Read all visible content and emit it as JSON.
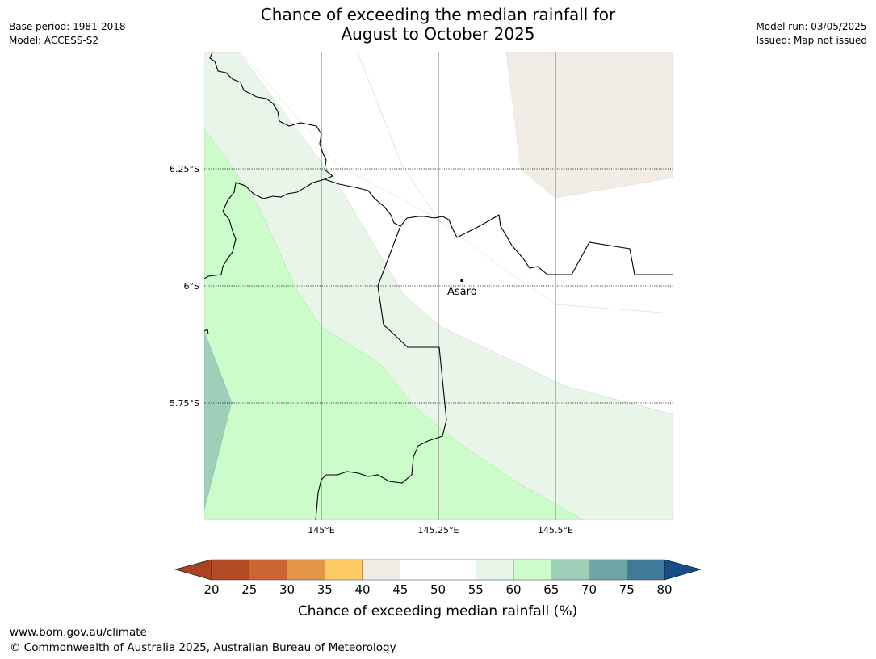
{
  "header": {
    "base_period": "Base period: 1981-2018",
    "model": "Model: ACCESS-S2",
    "model_run": "Model run: 03/05/2025",
    "issued": "Issued: Map not issued",
    "title_line1": "Chance of exceeding the median rainfall for",
    "title_line2": "August to October 2025"
  },
  "map": {
    "latitudes": [
      {
        "value": -5.75,
        "label": "5.75°S"
      },
      {
        "value": -6.0,
        "label": "6°S"
      },
      {
        "value": -6.25,
        "label": "6.25°S"
      }
    ],
    "longitudes": [
      {
        "value": 145.0,
        "label": "145°E"
      },
      {
        "value": 145.25,
        "label": "145.25°E"
      },
      {
        "value": 145.5,
        "label": "145.5°E"
      }
    ],
    "place": {
      "name": "Asaro",
      "lat": -6.01,
      "lon": 145.3
    }
  },
  "colorbar": {
    "ticks": [
      "20",
      "25",
      "30",
      "35",
      "40",
      "45",
      "50",
      "55",
      "60",
      "65",
      "70",
      "75",
      "80"
    ],
    "colors": [
      "#ab4222",
      "#b24a24",
      "#cb6531",
      "#e39646",
      "#fecb67",
      "#f1ece6",
      "#ffffff",
      "#ffffff",
      "#e9f5e9",
      "#cbfcca",
      "#9ecfb9",
      "#6fa6a6",
      "#417b9a",
      "#184e86"
    ],
    "label": "Chance of exceeding median rainfall (%)"
  },
  "footer": {
    "url": "www.bom.gov.au/climate",
    "copyright": "© Commonwealth of Australia 2025, Australian Bureau of Meteorology"
  }
}
